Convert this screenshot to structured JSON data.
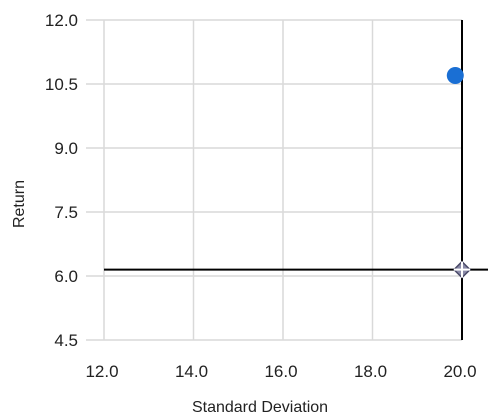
{
  "chart_data": {
    "type": "scatter",
    "xlabel": "Standard Deviation",
    "ylabel": "Return",
    "xlim": [
      12.0,
      20.0
    ],
    "ylim": [
      4.5,
      12.0
    ],
    "x_ticks": [
      "12.0",
      "14.0",
      "16.0",
      "18.0",
      "20.0"
    ],
    "y_ticks": [
      "12.0",
      "10.5",
      "9.0",
      "7.5",
      "6.0",
      "4.5"
    ],
    "grid": true,
    "points": [
      {
        "x": 19.85,
        "y": 10.7,
        "marker": "circle",
        "color": "#1a6fd4"
      },
      {
        "x": 20.0,
        "y": 6.15,
        "marker": "crosshair-diamond",
        "color": "#4a4a68"
      }
    ],
    "reference_lines": {
      "vertical_x": 20.0,
      "horizontal_y": 6.15,
      "color": "#000000"
    }
  }
}
